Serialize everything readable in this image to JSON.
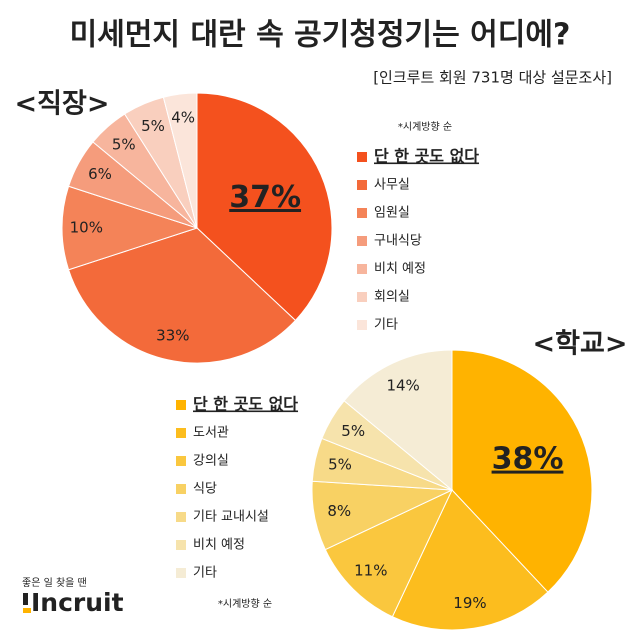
{
  "title": "미세먼지 대란 속 공기청정기는 어디에?",
  "subtitle": "[인크루트 회원 731명 대상 설문조사]",
  "logo": {
    "tagline": "좋은 일 찾을 땐",
    "name": "Incruit"
  },
  "chart_data": [
    {
      "type": "pie",
      "title": "<직장>",
      "note": "*시계방향 순",
      "categories": [
        "단 한 곳도 없다",
        "사무실",
        "임원실",
        "구내식당",
        "비치 예정",
        "회의실",
        "기타"
      ],
      "values": [
        37,
        33,
        10,
        6,
        5,
        5,
        4
      ],
      "value_labels": [
        "37%",
        "33%",
        "10%",
        "6%",
        "5%",
        "5%",
        "4%"
      ],
      "colors": [
        "#f4511e",
        "#f36a3a",
        "#f48358",
        "#f59c7c",
        "#f7b59d",
        "#f9cfbe",
        "#fbe5da"
      ],
      "title_color": "#f4511e"
    },
    {
      "type": "pie",
      "title": "<학교>",
      "note": "*시계방향 순",
      "categories": [
        "단 한 곳도 없다",
        "도서관",
        "강의실",
        "식당",
        "기타 교내시설",
        "비치 예정",
        "기타"
      ],
      "values": [
        38,
        19,
        11,
        8,
        5,
        5,
        14
      ],
      "value_labels": [
        "38%",
        "19%",
        "11%",
        "8%",
        "5%",
        "5%",
        "14%"
      ],
      "colors": [
        "#ffb300",
        "#fcbd1e",
        "#fac73e",
        "#f8d163",
        "#f7da88",
        "#f6e3ac",
        "#f5ecd5"
      ],
      "title_color": "#ffb300"
    }
  ]
}
